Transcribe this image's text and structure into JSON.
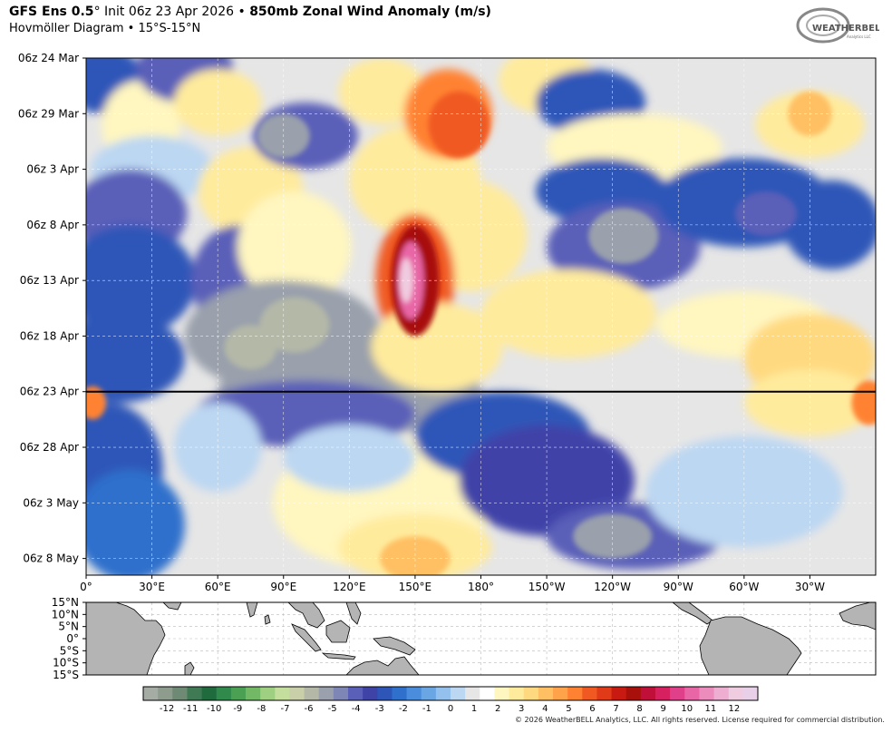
{
  "header": {
    "model": "GFS Ens 0.5",
    "deg": "°",
    "init": " Init 06z 23 Apr 2026 • ",
    "field": "850mb Zonal Wind Anomaly (m/s)",
    "subtitle": "Hovmöller Diagram • 15°S-15°N"
  },
  "logo": {
    "text": "WEATHERBELL",
    "sub": "Analytics LLC"
  },
  "footer": "© 2026 WeatherBELL Analytics, LLC. All rights reserved. License required for commercial distribution.",
  "chart_data": {
    "type": "heatmap",
    "title": "850mb Zonal Wind Anomaly (m/s)",
    "subtitle": "Hovmöller Diagram • 15°S-15°N",
    "units": "m/s",
    "x_ticks": [
      "0°",
      "30°E",
      "60°E",
      "90°E",
      "120°E",
      "150°E",
      "180°",
      "150°W",
      "120°W",
      "90°W",
      "60°W",
      "30°W"
    ],
    "x_tick_values": [
      0,
      30,
      60,
      90,
      120,
      150,
      180,
      210,
      240,
      270,
      300,
      330
    ],
    "xlim": [
      0,
      360
    ],
    "y_ticks": [
      "06z 24 Mar",
      "06z 29 Mar",
      "06z 3 Apr",
      "06z 8 Apr",
      "06z 13 Apr",
      "06z 18 Apr",
      "06z 23 Apr",
      "06z 28 Apr",
      "06z 3 May",
      "06z 8 May"
    ],
    "y_tick_values": [
      "2026-03-24T06Z",
      "2026-03-29T06Z",
      "2026-04-03T06Z",
      "2026-04-08T06Z",
      "2026-04-13T06Z",
      "2026-04-18T06Z",
      "2026-04-23T06Z",
      "2026-04-28T06Z",
      "2026-05-03T06Z",
      "2026-05-08T06Z"
    ],
    "ylim": [
      "2026-03-24T06Z",
      "2026-05-09T18Z"
    ],
    "init_line": "2026-04-23T06Z",
    "map_lat_ticks": [
      "15°N",
      "10°N",
      "5°N",
      "0°",
      "5°S",
      "10°S",
      "15°S"
    ],
    "map_lat_values": [
      15,
      10,
      5,
      0,
      -5,
      -10,
      -15
    ],
    "colorbar": {
      "labels": [
        "-12",
        "-11",
        "-10",
        "-9",
        "-8",
        "-7",
        "-6",
        "-5",
        "-4",
        "-3",
        "-2",
        "-1",
        "0",
        "1",
        "2",
        "3",
        "4",
        "5",
        "6",
        "7",
        "8",
        "9",
        "10",
        "11",
        "12"
      ],
      "min": -13,
      "max": 13,
      "colors": [
        "#a4aca4",
        "#8e9c8e",
        "#6e8a74",
        "#3f7a55",
        "#1f6b3e",
        "#2f8a4b",
        "#4aa153",
        "#72b865",
        "#9fcf80",
        "#c4de9e",
        "#c9cfa8",
        "#b3b8a7",
        "#9aa0ac",
        "#7e86b6",
        "#5a5fb8",
        "#3f43a8",
        "#2e56b8",
        "#2f70cc",
        "#4a8ddc",
        "#6aa6e4",
        "#93c0ec",
        "#bcd7f2",
        "#e6e6e6",
        "#ffffff",
        "#fff6c0",
        "#ffeb9c",
        "#ffd980",
        "#ffc063",
        "#ffa34a",
        "#ff8233",
        "#f05a22",
        "#e03a18",
        "#c81a10",
        "#a8100c",
        "#c0103a",
        "#d62060",
        "#e0408a",
        "#e866a6",
        "#ec8cbc",
        "#eeaed2",
        "#f0cce0",
        "#e8d0e8"
      ]
    },
    "features": [
      {
        "name": "westerly anomaly core",
        "lon_center": 150,
        "time_center": "2026-04-13T06Z",
        "peak": 12
      },
      {
        "name": "easterly anomaly band",
        "lon_range": [
          60,
          130
        ],
        "time_range": [
          "2026-04-15T06Z",
          "2026-04-27T06Z"
        ],
        "peak": -6
      },
      {
        "name": "forecast westerly region",
        "lon_range": [
          90,
          180
        ],
        "time_range": [
          "2026-04-29T06Z",
          "2026-05-09T06Z"
        ],
        "peak": 4
      },
      {
        "name": "forecast easterly region",
        "lon_range": [
          200,
          290
        ],
        "time_range": [
          "2026-04-26T06Z",
          "2026-05-08T06Z"
        ],
        "peak": -5
      }
    ]
  }
}
